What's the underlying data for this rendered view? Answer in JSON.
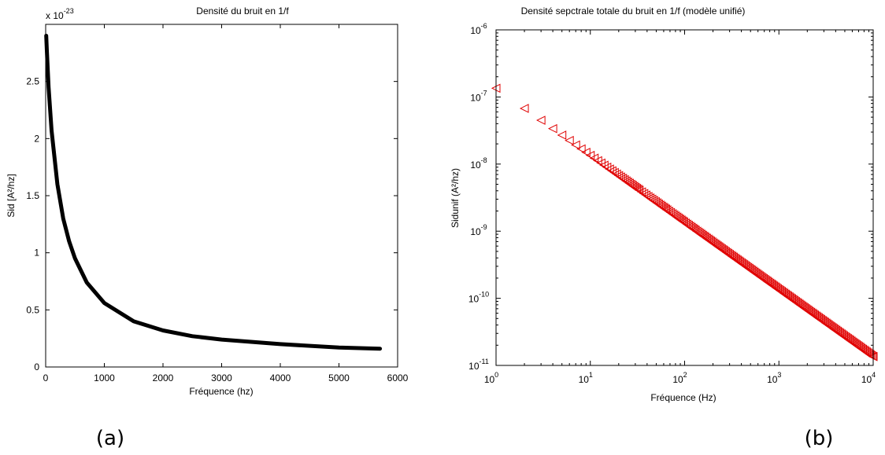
{
  "panels": {
    "a_caption": "(a)",
    "b_caption": "(b)"
  },
  "colors": {
    "curve_a": "#000000",
    "markers_b": "#e00000"
  },
  "chart_data": [
    {
      "type": "line",
      "title": "Densité du bruit en 1/f",
      "xlabel": "Fréquence  (hz)",
      "ylabel": "Sid   [A²/hz]",
      "y_multiplier": "x 10",
      "y_multiplier_exp": "-23",
      "xlim": [
        0,
        6000
      ],
      "ylim": [
        0,
        3
      ],
      "x_ticks": [
        "0",
        "1000",
        "2000",
        "3000",
        "4000",
        "5000",
        "6000"
      ],
      "y_ticks": [
        "0",
        "0.5",
        "1",
        "1.5",
        "2",
        "2.5"
      ],
      "grid": false,
      "series": [
        {
          "x": [
            10,
            20,
            50,
            100,
            200,
            300,
            400,
            500,
            700,
            1000,
            1500,
            2000,
            2500,
            3000,
            4000,
            5000,
            5700
          ],
          "y": [
            2.9,
            2.77,
            2.45,
            2.07,
            1.6,
            1.3,
            1.1,
            0.95,
            0.74,
            0.56,
            0.4,
            0.32,
            0.27,
            0.24,
            0.2,
            0.17,
            0.16
          ]
        }
      ]
    },
    {
      "type": "scatter",
      "title": "Densité sepctrale totale du bruit en 1/f (modèle unifié)",
      "xlabel": "Fréquence      (Hz)",
      "ylabel": "Sidunif   (A²/hz)",
      "x_scale": "log",
      "y_scale": "log",
      "xlim": [
        1,
        10000
      ],
      "ylim": [
        1e-11,
        1e-06
      ],
      "x_ticks": [
        {
          "base": "10",
          "exp": "0"
        },
        {
          "base": "10",
          "exp": "1"
        },
        {
          "base": "10",
          "exp": "2"
        },
        {
          "base": "10",
          "exp": "3"
        },
        {
          "base": "10",
          "exp": "4"
        }
      ],
      "y_ticks": [
        {
          "base": "10",
          "exp": "-11"
        },
        {
          "base": "10",
          "exp": "-10"
        },
        {
          "base": "10",
          "exp": "-9"
        },
        {
          "base": "10",
          "exp": "-8"
        },
        {
          "base": "10",
          "exp": "-7"
        },
        {
          "base": "10",
          "exp": "-6"
        }
      ],
      "marker": "triangle-left",
      "grid": false,
      "series": [
        {
          "points": "y = 1.35e-7 / x for x = 1, 2, 3, … 10000 (every integer frequency)"
        }
      ]
    }
  ]
}
